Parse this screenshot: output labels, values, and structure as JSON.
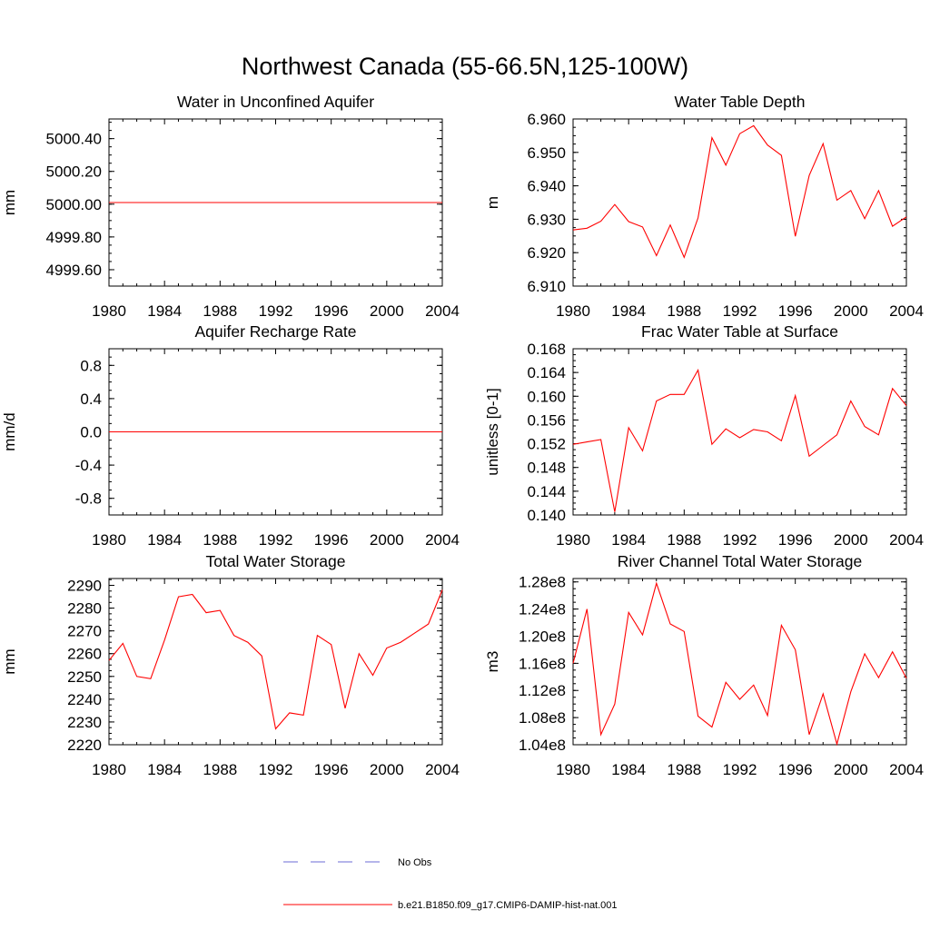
{
  "figure": {
    "title": "Northwest Canada (55-66.5N,125-100W)"
  },
  "colors": {
    "series": "#ff0000",
    "obs": "#6b6bd6",
    "axis": "#000000"
  },
  "chart_data": [
    {
      "id": "water-unconfined-aquifer",
      "type": "line",
      "title": "Water in Unconfined Aquifer",
      "ylabel": "mm",
      "xlim": [
        1980,
        2004
      ],
      "ylim": [
        4999.5,
        5000.52
      ],
      "xticks": [
        "1980",
        "1984",
        "1988",
        "1992",
        "1996",
        "2000",
        "2004"
      ],
      "yticks": [
        "4999.60",
        "4999.80",
        "5000.00",
        "5000.20",
        "5000.40"
      ],
      "series": [
        {
          "x": [
            1980,
            1981,
            1982,
            1983,
            1984,
            1985,
            1986,
            1987,
            1988,
            1989,
            1990,
            1991,
            1992,
            1993,
            1994,
            1995,
            1996,
            1997,
            1998,
            1999,
            2000,
            2001,
            2002,
            2003,
            2004
          ],
          "values": [
            5000.01,
            5000.01,
            5000.01,
            5000.01,
            5000.01,
            5000.01,
            5000.01,
            5000.01,
            5000.01,
            5000.01,
            5000.01,
            5000.01,
            5000.01,
            5000.01,
            5000.01,
            5000.01,
            5000.01,
            5000.01,
            5000.01,
            5000.01,
            5000.01,
            5000.01,
            5000.01,
            5000.01,
            5000.01
          ]
        }
      ]
    },
    {
      "id": "water-table-depth",
      "type": "line",
      "title": "Water Table Depth",
      "ylabel": "m",
      "xlim": [
        1980,
        2004
      ],
      "ylim": [
        6.91,
        6.96
      ],
      "xticks": [
        "1980",
        "1984",
        "1988",
        "1992",
        "1996",
        "2000",
        "2004"
      ],
      "yticks": [
        "6.910",
        "6.920",
        "6.930",
        "6.940",
        "6.950",
        "6.960"
      ],
      "series": [
        {
          "x": [
            1980,
            1981,
            1982,
            1983,
            1984,
            1985,
            1986,
            1987,
            1988,
            1989,
            1990,
            1991,
            1992,
            1993,
            1994,
            1995,
            1996,
            1997,
            1998,
            1999,
            2000,
            2001,
            2002,
            2003,
            2004
          ],
          "values": [
            6.9268,
            6.9273,
            6.9294,
            6.9344,
            6.9293,
            6.9277,
            6.9191,
            6.9283,
            6.9186,
            6.9304,
            6.9544,
            6.9462,
            6.9556,
            6.958,
            6.9522,
            6.9491,
            6.9249,
            6.9431,
            6.9526,
            6.9357,
            6.9386,
            6.9302,
            6.9386,
            6.9279,
            6.9307
          ]
        }
      ]
    },
    {
      "id": "aquifer-recharge-rate",
      "type": "line",
      "title": "Aquifer Recharge Rate",
      "ylabel": "mm/d",
      "xlim": [
        1980,
        2004
      ],
      "ylim": [
        -1.0,
        1.0
      ],
      "xticks": [
        "1980",
        "1984",
        "1988",
        "1992",
        "1996",
        "2000",
        "2004"
      ],
      "yticks": [
        "-0.8",
        "-0.4",
        "0.0",
        "0.4",
        "0.8"
      ],
      "series": [
        {
          "x": [
            1980,
            1981,
            1982,
            1983,
            1984,
            1985,
            1986,
            1987,
            1988,
            1989,
            1990,
            1991,
            1992,
            1993,
            1994,
            1995,
            1996,
            1997,
            1998,
            1999,
            2000,
            2001,
            2002,
            2003,
            2004
          ],
          "values": [
            0,
            0,
            0,
            0,
            0,
            0,
            0,
            0,
            0,
            0,
            0,
            0,
            0,
            0,
            0,
            0,
            0,
            0,
            0,
            0,
            0,
            0,
            0,
            0,
            0
          ]
        }
      ]
    },
    {
      "id": "frac-water-table-surface",
      "type": "line",
      "title": "Frac Water Table at Surface",
      "ylabel": "unitless [0-1]",
      "xlim": [
        1980,
        2004
      ],
      "ylim": [
        0.14,
        0.168
      ],
      "xticks": [
        "1980",
        "1984",
        "1988",
        "1992",
        "1996",
        "2000",
        "2004"
      ],
      "yticks": [
        "0.140",
        "0.144",
        "0.148",
        "0.152",
        "0.156",
        "0.160",
        "0.164",
        "0.168"
      ],
      "series": [
        {
          "x": [
            1980,
            1981,
            1982,
            1983,
            1984,
            1985,
            1986,
            1987,
            1988,
            1989,
            1990,
            1991,
            1992,
            1993,
            1994,
            1995,
            1996,
            1997,
            1998,
            1999,
            2000,
            2001,
            2002,
            2003,
            2004
          ],
          "values": [
            0.1519,
            0.1523,
            0.1527,
            0.1405,
            0.1547,
            0.1508,
            0.1592,
            0.1603,
            0.1603,
            0.1644,
            0.1519,
            0.1545,
            0.153,
            0.1544,
            0.154,
            0.1525,
            0.1601,
            0.1499,
            0.1517,
            0.1535,
            0.1592,
            0.1549,
            0.1535,
            0.1613,
            0.1584
          ]
        }
      ]
    },
    {
      "id": "total-water-storage",
      "type": "line",
      "title": "Total Water Storage",
      "ylabel": "mm",
      "xlim": [
        1980,
        2004
      ],
      "ylim": [
        2220,
        2293
      ],
      "xticks": [
        "1980",
        "1984",
        "1988",
        "1992",
        "1996",
        "2000",
        "2004"
      ],
      "yticks": [
        "2220",
        "2230",
        "2240",
        "2250",
        "2260",
        "2270",
        "2280",
        "2290"
      ],
      "series": [
        {
          "x": [
            1980,
            1981,
            1982,
            1983,
            1984,
            1985,
            1986,
            1987,
            1988,
            1989,
            1990,
            1991,
            1992,
            1993,
            1994,
            1995,
            1996,
            1997,
            1998,
            1999,
            2000,
            2001,
            2002,
            2003,
            2004
          ],
          "values": [
            2257,
            2264.5,
            2250,
            2249,
            2266,
            2285,
            2286,
            2278,
            2279,
            2268,
            2265,
            2259,
            2227,
            2234,
            2233,
            2268,
            2264,
            2236,
            2260,
            2250.5,
            2262.5,
            2265,
            2269,
            2273,
            2288
          ]
        }
      ]
    },
    {
      "id": "river-channel-storage",
      "type": "line",
      "title": "River Channel Total Water Storage",
      "ylabel": "m3",
      "xlim": [
        1980,
        2004
      ],
      "ylim": [
        104000000.0,
        128500000.0
      ],
      "xticks": [
        "1980",
        "1984",
        "1988",
        "1992",
        "1996",
        "2000",
        "2004"
      ],
      "yticks": [
        "1.04e8",
        "1.08e8",
        "1.12e8",
        "1.16e8",
        "1.20e8",
        "1.24e8",
        "1.28e8"
      ],
      "series": [
        {
          "x": [
            1980,
            1981,
            1982,
            1983,
            1984,
            1985,
            1986,
            1987,
            1988,
            1989,
            1990,
            1991,
            1992,
            1993,
            1994,
            1995,
            1996,
            1997,
            1998,
            1999,
            2000,
            2001,
            2002,
            2003,
            2004
          ],
          "values": [
            116000000,
            124000000,
            105500000,
            110000000,
            123500000,
            120200000,
            127800000,
            121800000,
            120700000,
            108200000,
            106600000,
            113200000,
            110700000,
            112800000,
            108300000,
            121600000,
            118000000,
            105500000,
            111500000,
            104100000,
            111800000,
            117400000,
            113900000,
            117700000,
            113800000
          ]
        }
      ]
    }
  ],
  "legend": {
    "items": [
      {
        "label": "No Obs",
        "style": "dashed"
      },
      {
        "label": "b.e21.B1850.f09_g17.CMIP6-DAMIP-hist-nat.001",
        "style": "solid"
      }
    ]
  }
}
